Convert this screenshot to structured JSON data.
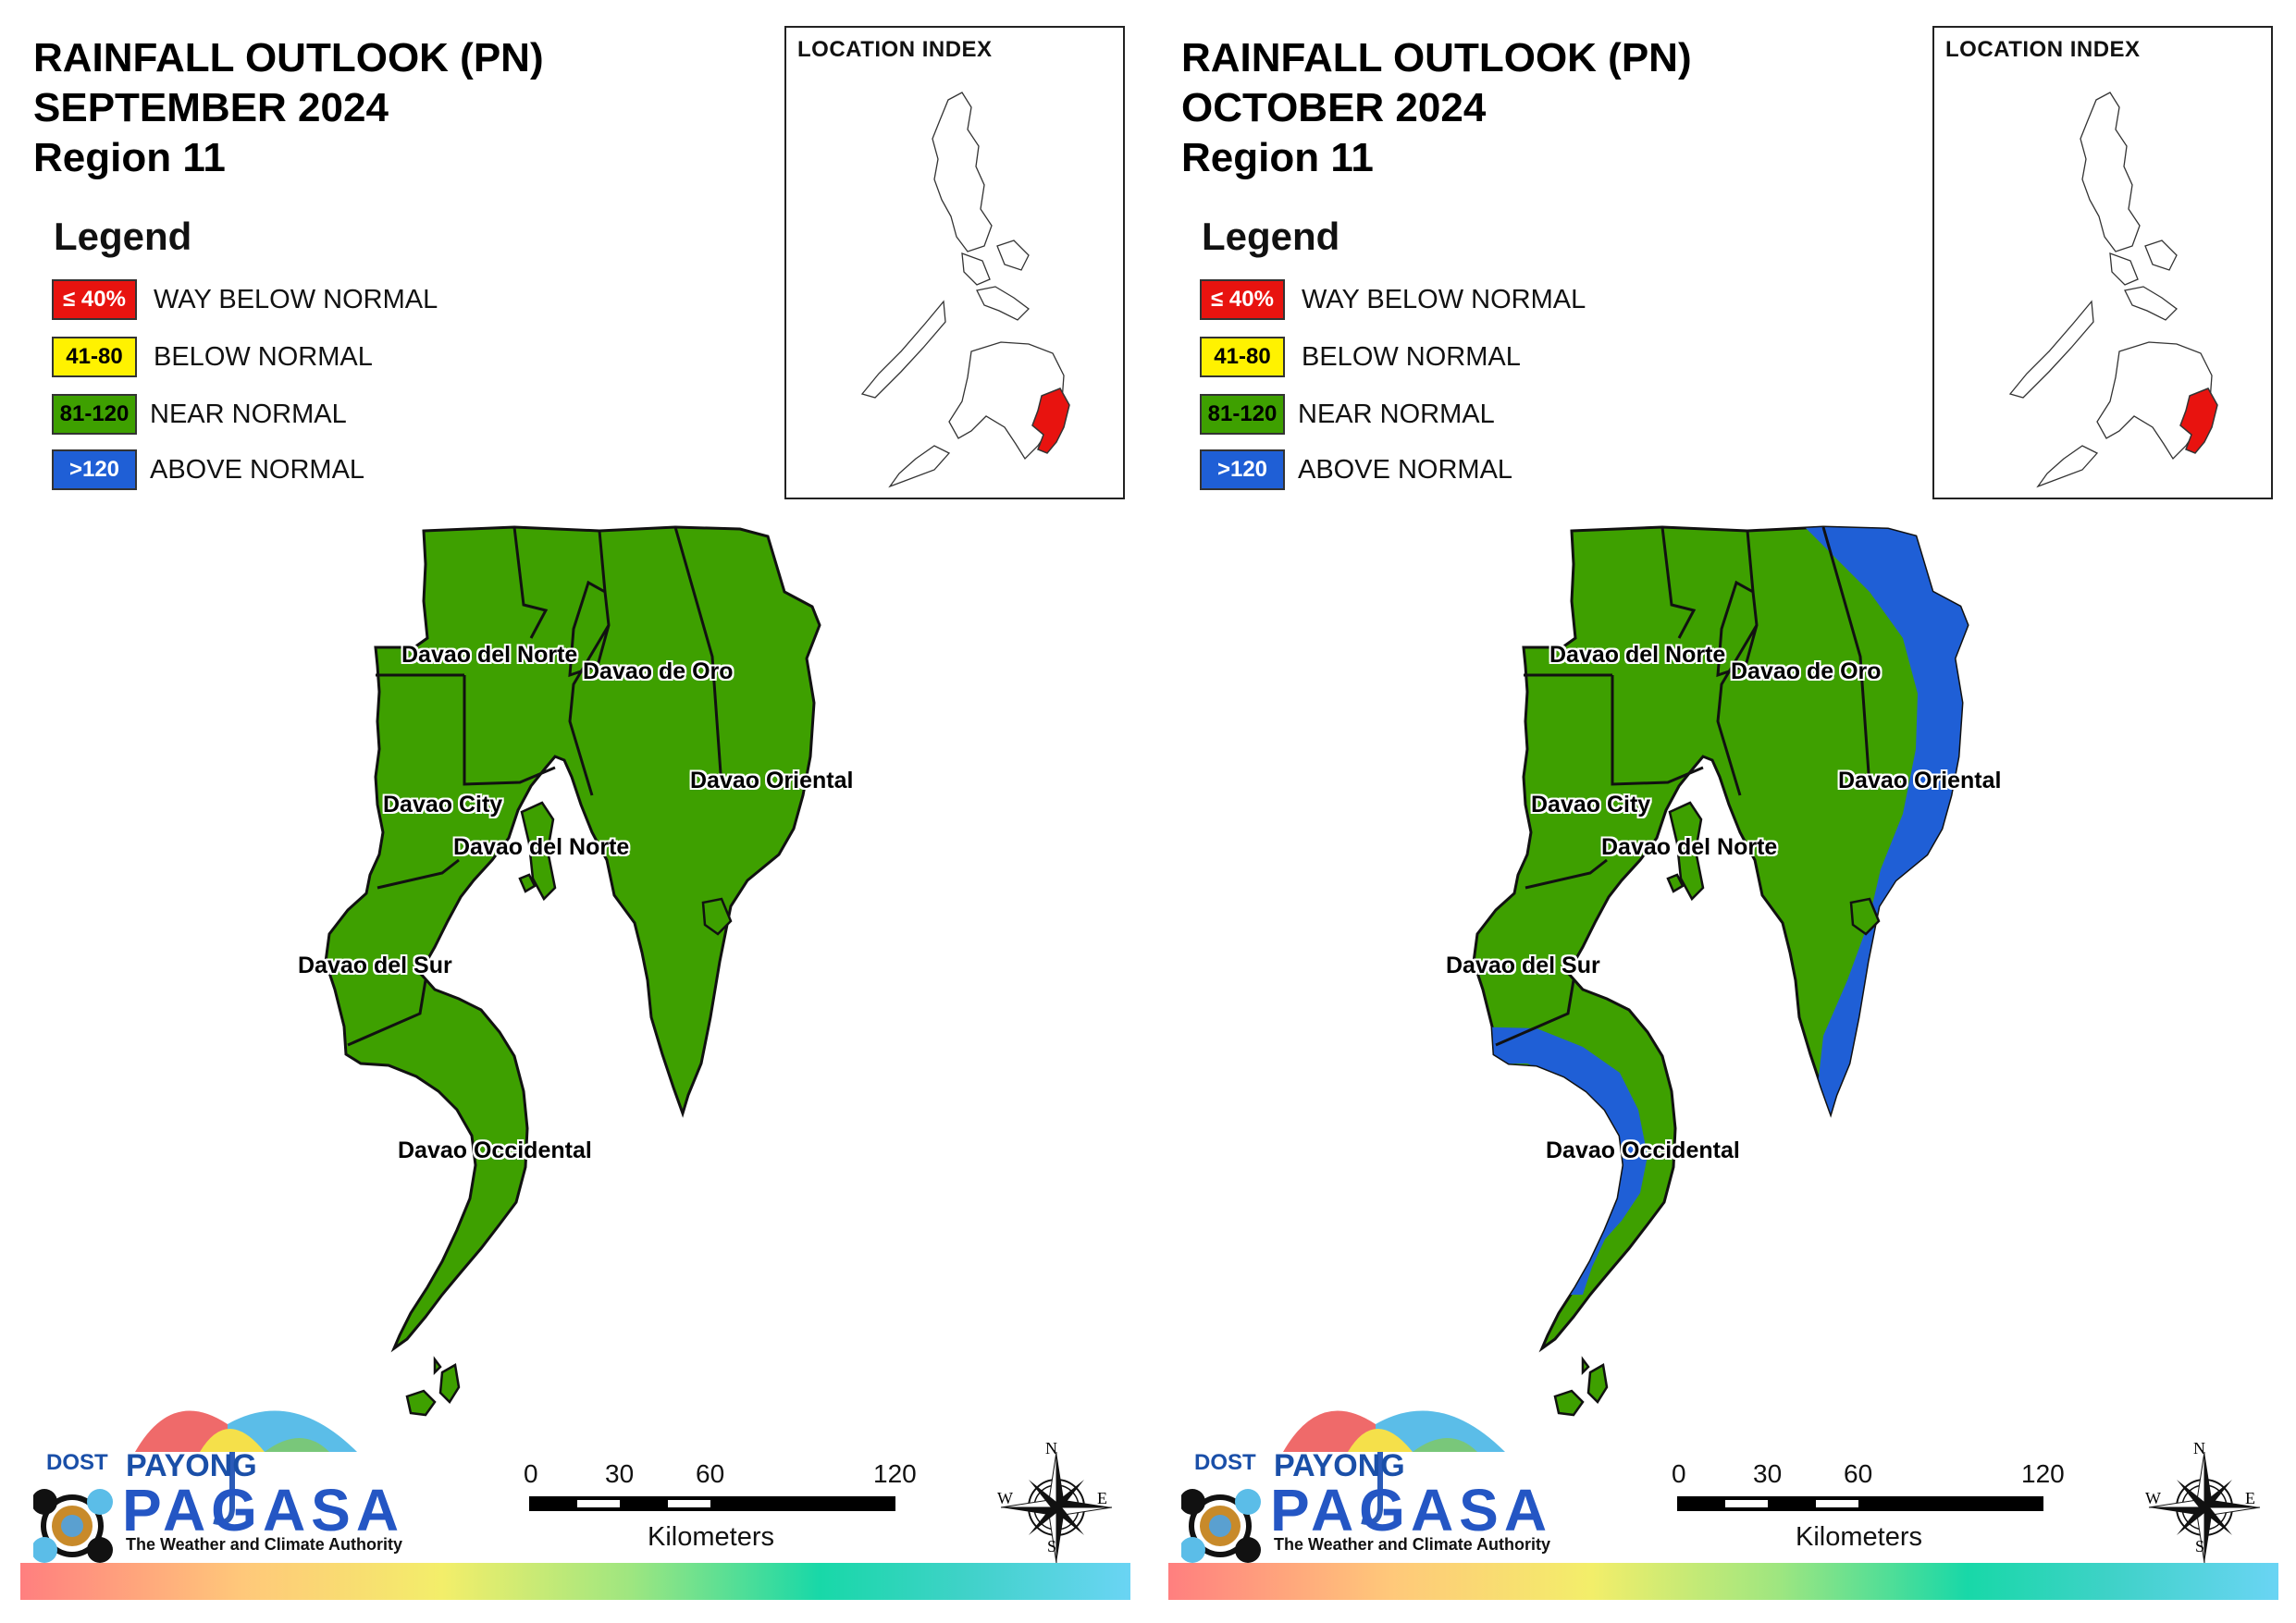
{
  "panels": [
    {
      "title_line1": "RAINFALL OUTLOOK (PN)",
      "title_line2": "SEPTEMBER 2024",
      "title_line3": "Region 11",
      "legend_title": "Legend",
      "legend": [
        {
          "swatch": "≤ 40%",
          "label": "WAY BELOW NORMAL",
          "color": "#e8130f",
          "text_color": "#ffffff"
        },
        {
          "swatch": "41-80",
          "label": "BELOW NORMAL",
          "color": "#fff200",
          "text_color": "#000000"
        },
        {
          "swatch": "81-120",
          "label": "NEAR NORMAL",
          "color": "#3ea000",
          "text_color": "#000000"
        },
        {
          "swatch": ">120",
          "label": "ABOVE NORMAL",
          "color": "#1f5fd6",
          "text_color": "#ffffff"
        }
      ],
      "location_index_title": "LOCATION INDEX",
      "map_labels": {
        "davao_del_norte_1": "Davao del Norte",
        "davao_de_oro": "Davao de Oro",
        "davao_oriental": "Davao Oriental",
        "davao_city": "Davao City",
        "davao_del_norte_2": "Davao del Norte",
        "davao_del_sur": "Davao del Sur",
        "davao_occidental": "Davao Occidental"
      },
      "map_category": "NEAR NORMAL",
      "scale": {
        "ticks": [
          "0",
          "30",
          "60",
          "120"
        ],
        "unit": "Kilometers"
      },
      "compass": {
        "n": "N",
        "e": "E",
        "s": "S",
        "w": "W"
      },
      "logo": {
        "dost": "DOST",
        "payong": "PAYONG",
        "pagasa": "PAGASA",
        "tagline": "The Weather and Climate Authority"
      }
    },
    {
      "title_line1": "RAINFALL OUTLOOK (PN)",
      "title_line2": "OCTOBER 2024",
      "title_line3": "Region 11",
      "legend_title": "Legend",
      "legend": [
        {
          "swatch": "≤ 40%",
          "label": "WAY BELOW NORMAL",
          "color": "#e8130f",
          "text_color": "#ffffff"
        },
        {
          "swatch": "41-80",
          "label": "BELOW NORMAL",
          "color": "#fff200",
          "text_color": "#000000"
        },
        {
          "swatch": "81-120",
          "label": "NEAR NORMAL",
          "color": "#3ea000",
          "text_color": "#000000"
        },
        {
          "swatch": ">120",
          "label": "ABOVE NORMAL",
          "color": "#1f5fd6",
          "text_color": "#ffffff"
        }
      ],
      "location_index_title": "LOCATION INDEX",
      "map_labels": {
        "davao_del_norte_1": "Davao del Norte",
        "davao_de_oro": "Davao de Oro",
        "davao_oriental": "Davao Oriental",
        "davao_city": "Davao City",
        "davao_del_norte_2": "Davao del Norte",
        "davao_del_sur": "Davao del Sur",
        "davao_occidental": "Davao Occidental"
      },
      "map_category": "NEAR NORMAL with ABOVE NORMAL coastal areas",
      "scale": {
        "ticks": [
          "0",
          "30",
          "60",
          "120"
        ],
        "unit": "Kilometers"
      },
      "compass": {
        "n": "N",
        "e": "E",
        "s": "S",
        "w": "W"
      },
      "logo": {
        "dost": "DOST",
        "payong": "PAYONG",
        "pagasa": "PAGASA",
        "tagline": "The Weather and Climate Authority"
      }
    }
  ]
}
